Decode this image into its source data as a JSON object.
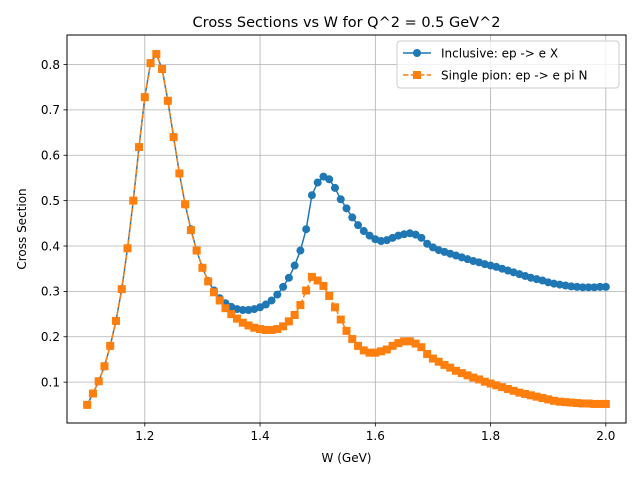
{
  "chart_data": {
    "type": "line",
    "title": "Cross Sections vs W for Q^2 = 0.5 GeV^2",
    "xlabel": "W (GeV)",
    "ylabel": "Cross Section",
    "xlim": [
      1.065,
      2.035
    ],
    "ylim": [
      0.01,
      0.865
    ],
    "xticks": [
      1.2,
      1.4,
      1.6,
      1.8,
      2.0
    ],
    "xtick_labels": [
      "1.2",
      "1.4",
      "1.6",
      "1.8",
      "2.0"
    ],
    "yticks": [
      0.1,
      0.2,
      0.3,
      0.4,
      0.5,
      0.6,
      0.7,
      0.8
    ],
    "ytick_labels": [
      "0.1",
      "0.2",
      "0.3",
      "0.4",
      "0.5",
      "0.6",
      "0.7",
      "0.8"
    ],
    "grid": true,
    "legend_position": "top-right",
    "x": [
      1.1,
      1.11,
      1.12,
      1.13,
      1.14,
      1.15,
      1.16,
      1.17,
      1.18,
      1.19,
      1.2,
      1.21,
      1.22,
      1.23,
      1.24,
      1.25,
      1.26,
      1.27,
      1.28,
      1.29,
      1.3,
      1.31,
      1.32,
      1.33,
      1.34,
      1.35,
      1.36,
      1.37,
      1.38,
      1.39,
      1.4,
      1.41,
      1.42,
      1.43,
      1.44,
      1.45,
      1.46,
      1.47,
      1.48,
      1.49,
      1.5,
      1.51,
      1.52,
      1.53,
      1.54,
      1.55,
      1.56,
      1.57,
      1.58,
      1.59,
      1.6,
      1.61,
      1.62,
      1.63,
      1.64,
      1.65,
      1.66,
      1.67,
      1.68,
      1.69,
      1.7,
      1.71,
      1.72,
      1.73,
      1.74,
      1.75,
      1.76,
      1.77,
      1.78,
      1.79,
      1.8,
      1.81,
      1.82,
      1.83,
      1.84,
      1.85,
      1.86,
      1.87,
      1.88,
      1.89,
      1.9,
      1.91,
      1.92,
      1.93,
      1.94,
      1.95,
      1.96,
      1.97,
      1.98,
      1.99,
      2.0
    ],
    "series": [
      {
        "name": "Inclusive: ep -> e X",
        "color": "#1f77b4",
        "marker": "circle",
        "linestyle": "solid",
        "values": [
          0.05,
          0.075,
          0.102,
          0.135,
          0.18,
          0.235,
          0.305,
          0.395,
          0.5,
          0.618,
          0.728,
          0.803,
          0.823,
          0.79,
          0.72,
          0.64,
          0.56,
          0.492,
          0.437,
          0.39,
          0.352,
          0.323,
          0.302,
          0.285,
          0.274,
          0.266,
          0.261,
          0.259,
          0.259,
          0.261,
          0.265,
          0.271,
          0.28,
          0.293,
          0.31,
          0.33,
          0.357,
          0.39,
          0.437,
          0.512,
          0.54,
          0.553,
          0.547,
          0.528,
          0.503,
          0.483,
          0.463,
          0.446,
          0.433,
          0.423,
          0.415,
          0.411,
          0.413,
          0.418,
          0.423,
          0.426,
          0.428,
          0.425,
          0.418,
          0.405,
          0.397,
          0.391,
          0.387,
          0.383,
          0.379,
          0.375,
          0.371,
          0.367,
          0.364,
          0.36,
          0.357,
          0.354,
          0.35,
          0.346,
          0.342,
          0.338,
          0.334,
          0.33,
          0.327,
          0.324,
          0.32,
          0.317,
          0.315,
          0.313,
          0.311,
          0.31,
          0.309,
          0.309,
          0.309,
          0.31,
          0.31
        ]
      },
      {
        "name": "Single pion: ep -> e pi N",
        "color": "#ff7f0e",
        "marker": "square",
        "linestyle": "dashed",
        "values": [
          0.05,
          0.075,
          0.102,
          0.135,
          0.18,
          0.235,
          0.305,
          0.395,
          0.5,
          0.618,
          0.728,
          0.803,
          0.823,
          0.79,
          0.72,
          0.64,
          0.56,
          0.492,
          0.435,
          0.39,
          0.352,
          0.322,
          0.298,
          0.28,
          0.263,
          0.25,
          0.24,
          0.231,
          0.225,
          0.22,
          0.217,
          0.215,
          0.215,
          0.217,
          0.223,
          0.234,
          0.248,
          0.27,
          0.302,
          0.332,
          0.324,
          0.312,
          0.29,
          0.265,
          0.238,
          0.213,
          0.195,
          0.18,
          0.17,
          0.165,
          0.165,
          0.168,
          0.172,
          0.18,
          0.186,
          0.19,
          0.19,
          0.185,
          0.177,
          0.162,
          0.152,
          0.145,
          0.138,
          0.132,
          0.125,
          0.12,
          0.115,
          0.11,
          0.106,
          0.101,
          0.097,
          0.093,
          0.089,
          0.085,
          0.081,
          0.077,
          0.074,
          0.071,
          0.068,
          0.065,
          0.062,
          0.059,
          0.057,
          0.056,
          0.055,
          0.054,
          0.053,
          0.053,
          0.052,
          0.052,
          0.052
        ]
      }
    ]
  }
}
